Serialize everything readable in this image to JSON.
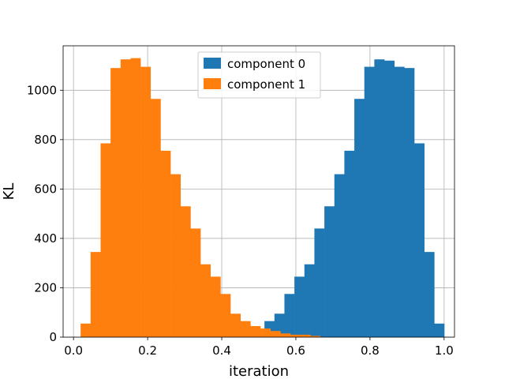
{
  "chart_data": {
    "type": "bar",
    "xlabel": "iteration",
    "ylabel": "KL",
    "xlim": [
      -0.028,
      1.028
    ],
    "ylim": [
      0,
      1180
    ],
    "grid": true,
    "legend_position": "top-center",
    "x_ticks": [
      0.0,
      0.2,
      0.4,
      0.6,
      0.8,
      1.0
    ],
    "x_tick_labels": [
      "0.0",
      "0.2",
      "0.4",
      "0.6",
      "0.8",
      "1.0"
    ],
    "y_ticks": [
      0,
      200,
      400,
      600,
      800,
      1000
    ],
    "y_tick_labels": [
      "0",
      "200",
      "400",
      "600",
      "800",
      "1000"
    ],
    "bin_width": 0.02695,
    "series": [
      {
        "name": "component 0",
        "color": "#1f77b4",
        "bin_start": 0.5152,
        "values": [
          65,
          95,
          175,
          245,
          295,
          440,
          530,
          660,
          755,
          965,
          1095,
          1125,
          1120,
          1095,
          1090,
          785,
          345,
          55
        ]
      },
      {
        "name": "component 1",
        "color": "#ff7f0e",
        "bin_start": 0.0192,
        "values": [
          55,
          345,
          785,
          1090,
          1125,
          1130,
          1095,
          965,
          755,
          660,
          530,
          440,
          295,
          245,
          175,
          95,
          65,
          45,
          35,
          25,
          15,
          10,
          10,
          5
        ]
      }
    ]
  }
}
